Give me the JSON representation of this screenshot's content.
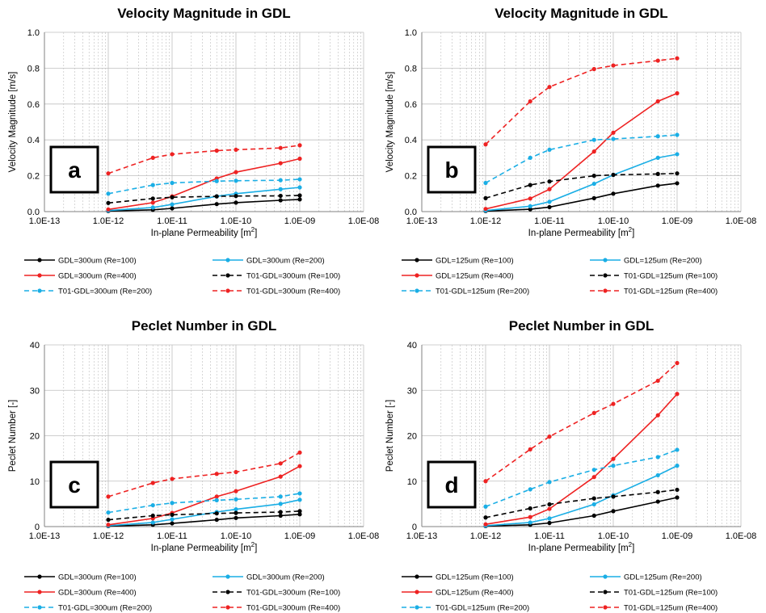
{
  "chart_data": [
    {
      "type": "line",
      "panel_label": "a",
      "title": "Velocity Magnitude in GDL",
      "xlabel": "In-plane Permeability [m",
      "xlabel_sup": "2",
      "xlabel_end": "]",
      "ylabel": "Velocity Magnitude [m/s]",
      "x_scale": "log",
      "xlim": [
        1e-13,
        1e-08
      ],
      "ylim": [
        0,
        1.0
      ],
      "x_ticks": [
        "1.0E-13",
        "1.0E-12",
        "1.0E-11",
        "1.0E-10",
        "1.0E-09",
        "1.0E-08"
      ],
      "y_ticks": [
        "0.0",
        "0.2",
        "0.4",
        "0.6",
        "0.8",
        "1.0"
      ],
      "grid": true,
      "legend_position": "bottom",
      "series": [
        {
          "name": "GDL=300um (Re=100)",
          "color": "#000000",
          "dash": false,
          "x": [
            1e-12,
            5e-12,
            1e-11,
            5e-11,
            1e-10,
            5e-10,
            1e-09
          ],
          "y": [
            0.003,
            0.01,
            0.018,
            0.042,
            0.05,
            0.063,
            0.068
          ]
        },
        {
          "name": "GDL=300um (Re=200)",
          "color": "#1aaee5",
          "dash": false,
          "x": [
            1e-12,
            5e-12,
            1e-11,
            5e-11,
            1e-10,
            5e-10,
            1e-09
          ],
          "y": [
            0.006,
            0.023,
            0.04,
            0.085,
            0.1,
            0.125,
            0.135
          ]
        },
        {
          "name": "GDL=300um (Re=400)",
          "color": "#ee2222",
          "dash": false,
          "x": [
            1e-12,
            5e-12,
            1e-11,
            5e-11,
            1e-10,
            5e-10,
            1e-09
          ],
          "y": [
            0.012,
            0.05,
            0.085,
            0.185,
            0.22,
            0.27,
            0.295
          ]
        },
        {
          "name": "T01-GDL=300um (Re=100)",
          "color": "#000000",
          "dash": true,
          "x": [
            1e-12,
            5e-12,
            1e-11,
            5e-11,
            1e-10,
            5e-10,
            1e-09
          ],
          "y": [
            0.048,
            0.073,
            0.08,
            0.085,
            0.087,
            0.088,
            0.09
          ]
        },
        {
          "name": "T01-GDL=300um (Re=200)",
          "color": "#1aaee5",
          "dash": true,
          "x": [
            1e-12,
            5e-12,
            1e-11,
            5e-11,
            1e-10,
            5e-10,
            1e-09
          ],
          "y": [
            0.1,
            0.148,
            0.16,
            0.17,
            0.172,
            0.175,
            0.18
          ]
        },
        {
          "name": "T01-GDL=300um (Re=400)",
          "color": "#ee2222",
          "dash": true,
          "x": [
            1e-12,
            5e-12,
            1e-11,
            5e-11,
            1e-10,
            5e-10,
            1e-09
          ],
          "y": [
            0.213,
            0.3,
            0.32,
            0.34,
            0.345,
            0.355,
            0.37
          ]
        }
      ]
    },
    {
      "type": "line",
      "panel_label": "b",
      "title": "Velocity Magnitude in GDL",
      "xlabel": "In-plane Permeability [m",
      "xlabel_sup": "2",
      "xlabel_end": "]",
      "ylabel": "Velocity Magnitude [m/s]",
      "x_scale": "log",
      "xlim": [
        1e-13,
        1e-08
      ],
      "ylim": [
        0,
        1.0
      ],
      "x_ticks": [
        "1.0E-13",
        "1.0E-12",
        "1.0E-11",
        "1.0E-10",
        "1.0E-09",
        "1.0E-08"
      ],
      "y_ticks": [
        "0.0",
        "0.2",
        "0.4",
        "0.6",
        "0.8",
        "1.0"
      ],
      "grid": true,
      "legend_position": "bottom",
      "series": [
        {
          "name": "GDL=125um (Re=100)",
          "color": "#000000",
          "dash": false,
          "x": [
            1e-12,
            5e-12,
            1e-11,
            5e-11,
            1e-10,
            5e-10,
            1e-09
          ],
          "y": [
            0.003,
            0.013,
            0.025,
            0.075,
            0.1,
            0.145,
            0.158
          ]
        },
        {
          "name": "GDL=125um (Re=200)",
          "color": "#1aaee5",
          "dash": false,
          "x": [
            1e-12,
            5e-12,
            1e-11,
            5e-11,
            1e-10,
            5e-10,
            1e-09
          ],
          "y": [
            0.006,
            0.03,
            0.055,
            0.155,
            0.205,
            0.3,
            0.32
          ]
        },
        {
          "name": "GDL=125um (Re=400)",
          "color": "#ee2222",
          "dash": false,
          "x": [
            1e-12,
            5e-12,
            1e-11,
            5e-11,
            1e-10,
            5e-10,
            1e-09
          ],
          "y": [
            0.015,
            0.073,
            0.125,
            0.335,
            0.44,
            0.615,
            0.66
          ]
        },
        {
          "name": "T01-GDL=125um (Re=100)",
          "color": "#000000",
          "dash": true,
          "x": [
            1e-12,
            5e-12,
            1e-11,
            5e-11,
            1e-10,
            5e-10,
            1e-09
          ],
          "y": [
            0.075,
            0.148,
            0.168,
            0.2,
            0.205,
            0.21,
            0.213
          ]
        },
        {
          "name": "T01-GDL=125um (Re=200)",
          "color": "#1aaee5",
          "dash": true,
          "x": [
            1e-12,
            5e-12,
            1e-11,
            5e-11,
            1e-10,
            5e-10,
            1e-09
          ],
          "y": [
            0.16,
            0.3,
            0.345,
            0.4,
            0.405,
            0.42,
            0.428
          ]
        },
        {
          "name": "T01-GDL=125um (Re=400)",
          "color": "#ee2222",
          "dash": true,
          "x": [
            1e-12,
            5e-12,
            1e-11,
            5e-11,
            1e-10,
            5e-10,
            1e-09
          ],
          "y": [
            0.375,
            0.615,
            0.695,
            0.795,
            0.815,
            0.842,
            0.855
          ]
        }
      ]
    },
    {
      "type": "line",
      "panel_label": "c",
      "title": "Peclet Number in GDL",
      "xlabel": "In-plane Permeability [m",
      "xlabel_sup": "2",
      "xlabel_end": "]",
      "ylabel": "Peclet Number [-]",
      "x_scale": "log",
      "xlim": [
        1e-13,
        1e-08
      ],
      "ylim": [
        0,
        40
      ],
      "x_ticks": [
        "1.0E-13",
        "1.0E-12",
        "1.0E-11",
        "1.0E-10",
        "1.0E-09",
        "1.0E-08"
      ],
      "y_ticks": [
        "0",
        "10",
        "20",
        "30",
        "40"
      ],
      "grid": true,
      "legend_position": "bottom",
      "series": [
        {
          "name": "GDL=300um (Re=100)",
          "color": "#000000",
          "dash": false,
          "x": [
            1e-12,
            5e-12,
            1e-11,
            5e-11,
            1e-10,
            5e-10,
            1e-09
          ],
          "y": [
            0.1,
            0.4,
            0.7,
            1.5,
            1.9,
            2.4,
            2.7
          ]
        },
        {
          "name": "GDL=300um (Re=200)",
          "color": "#1aaee5",
          "dash": false,
          "x": [
            1e-12,
            5e-12,
            1e-11,
            5e-11,
            1e-10,
            5e-10,
            1e-09
          ],
          "y": [
            0.2,
            0.9,
            1.6,
            3.2,
            3.8,
            5.0,
            5.9
          ]
        },
        {
          "name": "GDL=300um (Re=400)",
          "color": "#ee2222",
          "dash": false,
          "x": [
            1e-12,
            5e-12,
            1e-11,
            5e-11,
            1e-10,
            5e-10,
            1e-09
          ],
          "y": [
            0.4,
            1.8,
            3.0,
            6.6,
            7.8,
            11.0,
            13.3
          ]
        },
        {
          "name": "T01-GDL=300um (Re=100)",
          "color": "#000000",
          "dash": true,
          "x": [
            1e-12,
            5e-12,
            1e-11,
            5e-11,
            1e-10,
            5e-10,
            1e-09
          ],
          "y": [
            1.5,
            2.4,
            2.6,
            2.9,
            3.0,
            3.2,
            3.4
          ]
        },
        {
          "name": "T01-GDL=300um (Re=200)",
          "color": "#1aaee5",
          "dash": true,
          "x": [
            1e-12,
            5e-12,
            1e-11,
            5e-11,
            1e-10,
            5e-10,
            1e-09
          ],
          "y": [
            3.1,
            4.7,
            5.2,
            5.8,
            6.0,
            6.6,
            7.3
          ]
        },
        {
          "name": "T01-GDL=300um (Re=400)",
          "color": "#ee2222",
          "dash": true,
          "x": [
            1e-12,
            5e-12,
            1e-11,
            5e-11,
            1e-10,
            5e-10,
            1e-09
          ],
          "y": [
            6.6,
            9.6,
            10.5,
            11.6,
            12.0,
            13.9,
            16.3
          ]
        }
      ]
    },
    {
      "type": "line",
      "panel_label": "d",
      "title": "Peclet Number in GDL",
      "xlabel": "In-plane Permeability [m",
      "xlabel_sup": "2",
      "xlabel_end": "]",
      "ylabel": "Peclet Number [-]",
      "x_scale": "log",
      "xlim": [
        1e-13,
        1e-08
      ],
      "ylim": [
        0,
        40
      ],
      "x_ticks": [
        "1.0E-13",
        "1.0E-12",
        "1.0E-11",
        "1.0E-10",
        "1.0E-09",
        "1.0E-08"
      ],
      "y_ticks": [
        "0",
        "10",
        "20",
        "30",
        "40"
      ],
      "grid": true,
      "legend_position": "bottom",
      "series": [
        {
          "name": "GDL=125um (Re=100)",
          "color": "#000000",
          "dash": false,
          "x": [
            1e-12,
            5e-12,
            1e-11,
            5e-11,
            1e-10,
            5e-10,
            1e-09
          ],
          "y": [
            0.1,
            0.4,
            0.8,
            2.4,
            3.4,
            5.5,
            6.4
          ]
        },
        {
          "name": "GDL=125um (Re=200)",
          "color": "#1aaee5",
          "dash": false,
          "x": [
            1e-12,
            5e-12,
            1e-11,
            5e-11,
            1e-10,
            5e-10,
            1e-09
          ],
          "y": [
            0.2,
            0.9,
            1.8,
            4.9,
            6.9,
            11.3,
            13.4
          ]
        },
        {
          "name": "GDL=125um (Re=400)",
          "color": "#ee2222",
          "dash": false,
          "x": [
            1e-12,
            5e-12,
            1e-11,
            5e-11,
            1e-10,
            5e-10,
            1e-09
          ],
          "y": [
            0.5,
            2.1,
            3.9,
            10.9,
            14.9,
            24.5,
            29.2
          ]
        },
        {
          "name": "T01-GDL=125um (Re=100)",
          "color": "#000000",
          "dash": true,
          "x": [
            1e-12,
            5e-12,
            1e-11,
            5e-11,
            1e-10,
            5e-10,
            1e-09
          ],
          "y": [
            2.0,
            4.0,
            4.9,
            6.2,
            6.6,
            7.6,
            8.1
          ]
        },
        {
          "name": "T01-GDL=125um (Re=200)",
          "color": "#1aaee5",
          "dash": true,
          "x": [
            1e-12,
            5e-12,
            1e-11,
            5e-11,
            1e-10,
            5e-10,
            1e-09
          ],
          "y": [
            4.4,
            8.2,
            9.8,
            12.5,
            13.4,
            15.3,
            16.9
          ]
        },
        {
          "name": "T01-GDL=125um (Re=400)",
          "color": "#ee2222",
          "dash": true,
          "x": [
            1e-12,
            5e-12,
            1e-11,
            5e-11,
            1e-10,
            5e-10,
            1e-09
          ],
          "y": [
            10.0,
            17.0,
            19.8,
            25.0,
            27.0,
            32.1,
            36.0
          ]
        }
      ]
    }
  ]
}
